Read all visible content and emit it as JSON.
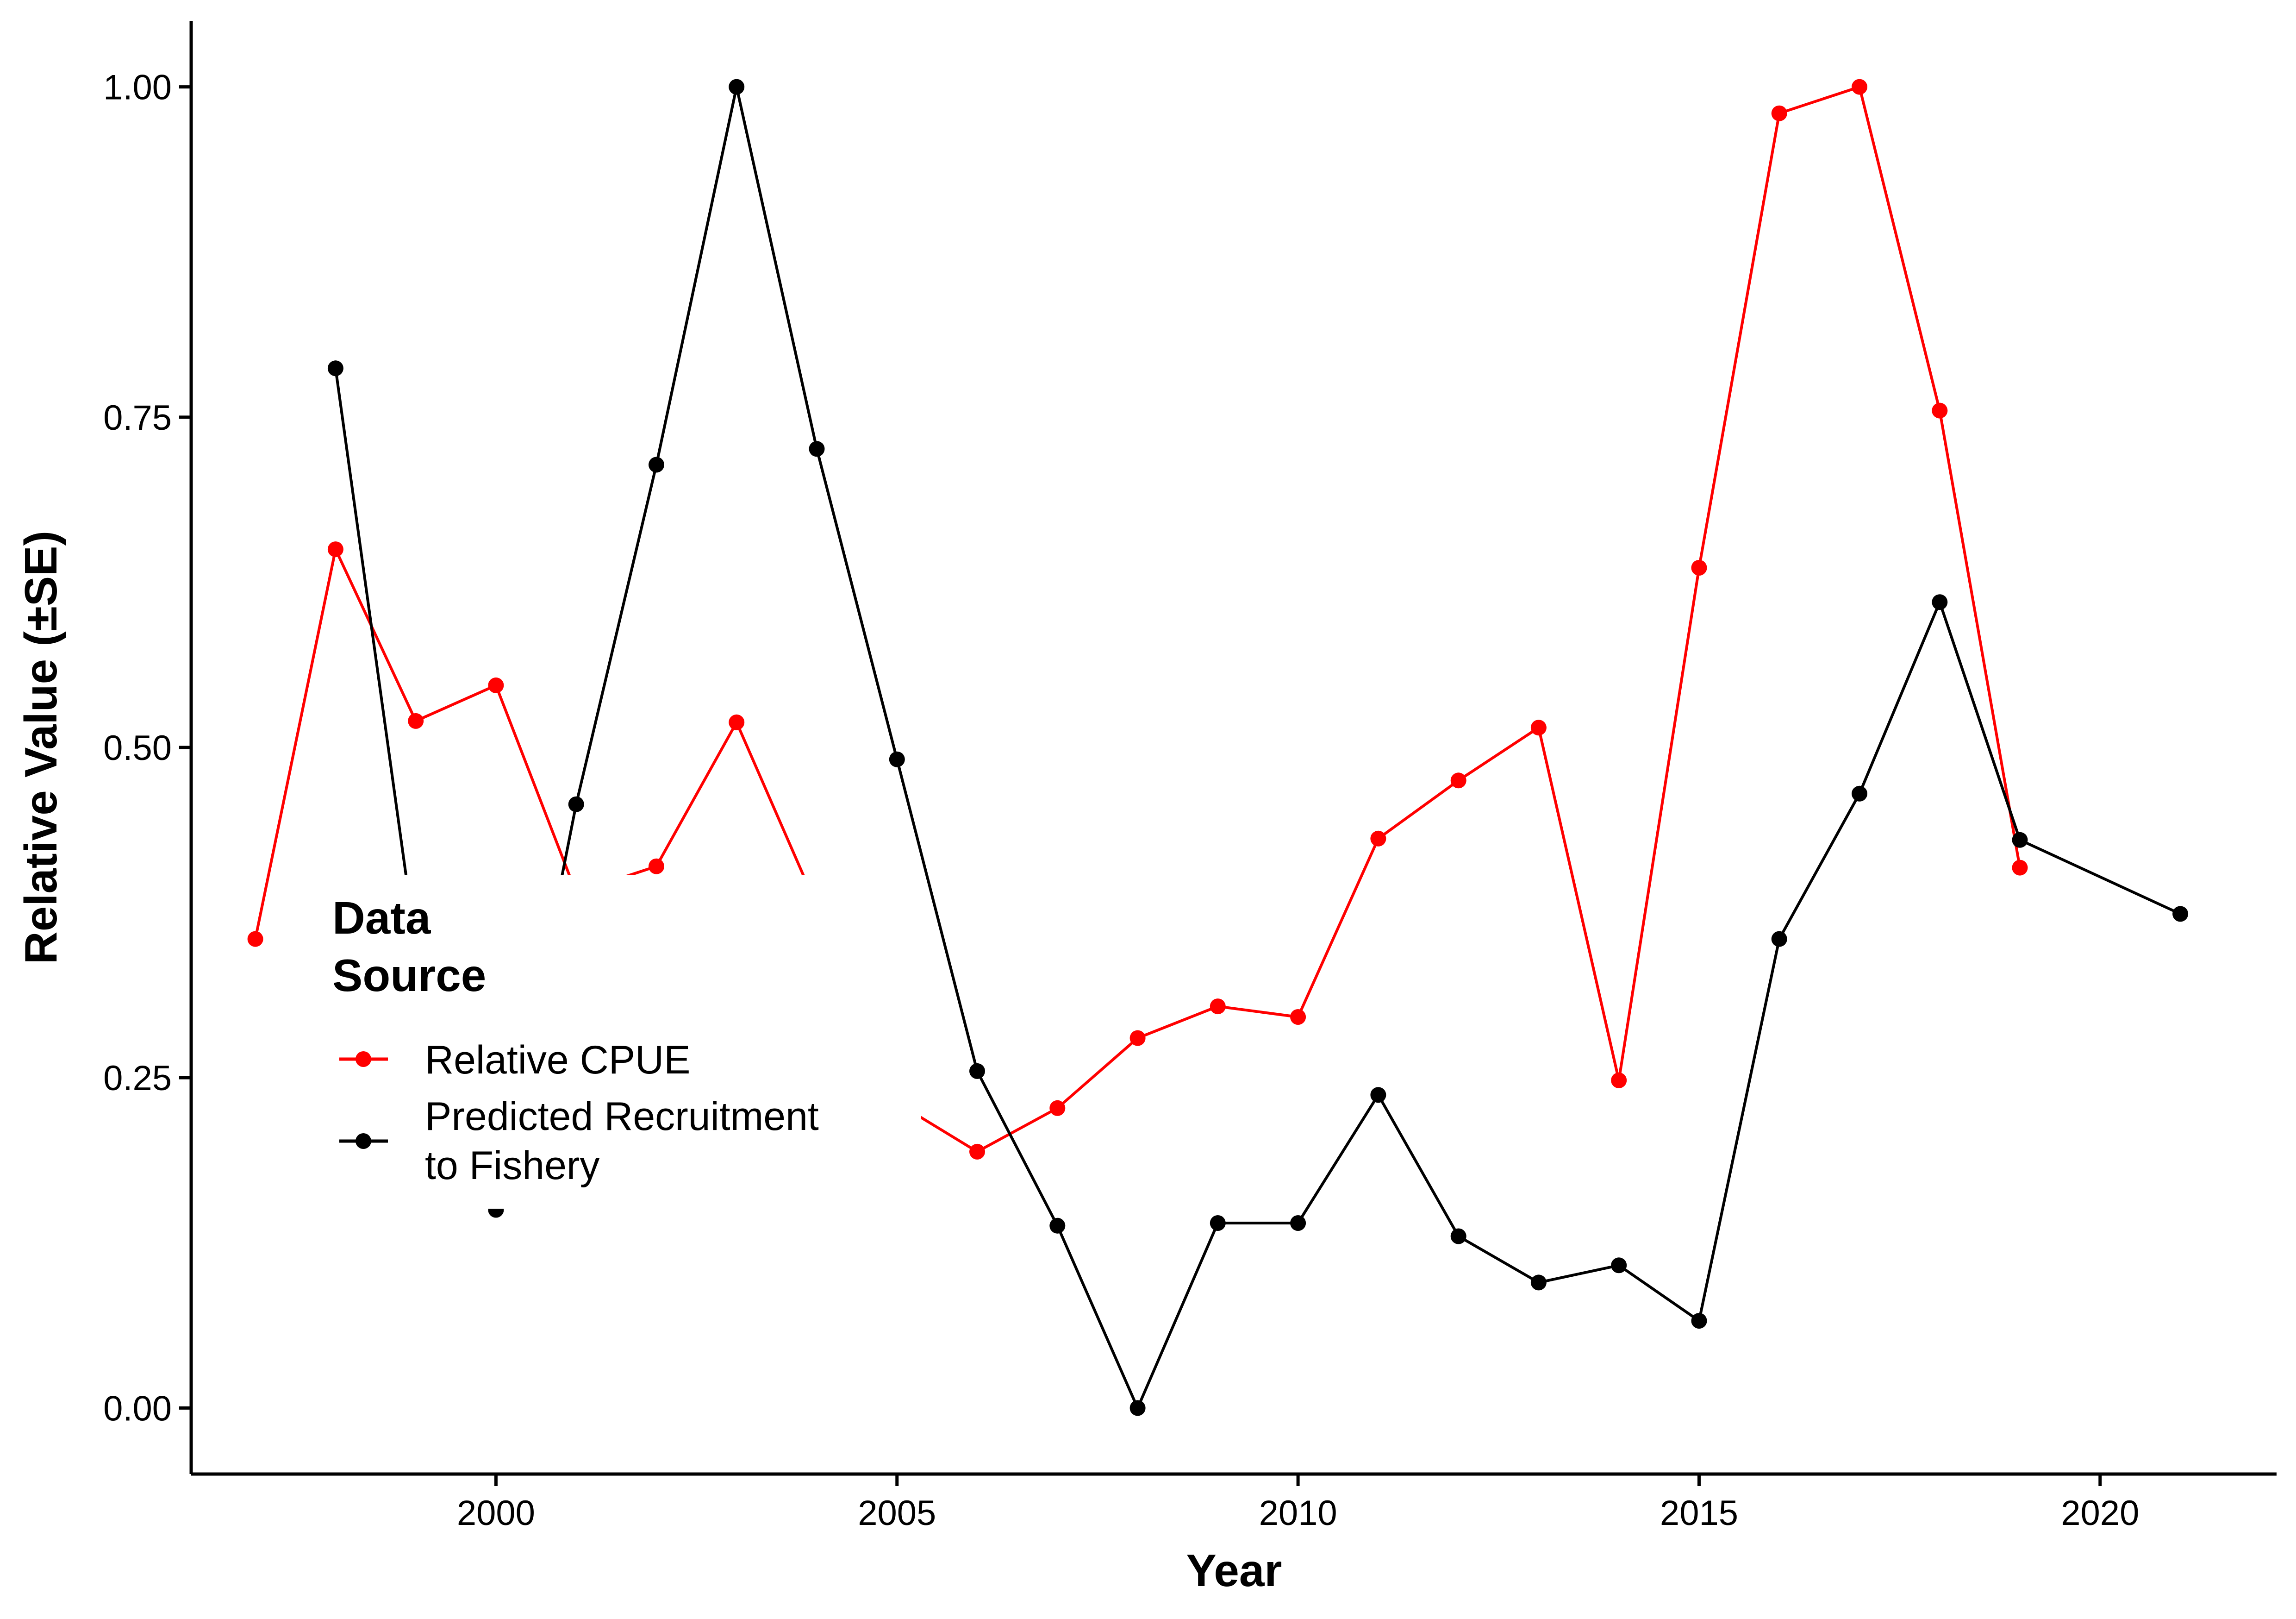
{
  "chart_data": {
    "type": "line",
    "xlabel": "Year",
    "ylabel": "Relative Value (±SE)",
    "xlim": [
      1996.2,
      2022.2
    ],
    "ylim": [
      -0.05,
      1.05
    ],
    "x_ticks": [
      2000,
      2005,
      2010,
      2015,
      2020
    ],
    "x_tick_labels": [
      "2000",
      "2005",
      "2010",
      "2015",
      "2020"
    ],
    "y_ticks": [
      0,
      0.25,
      0.5,
      0.75,
      1
    ],
    "y_tick_labels": [
      "0.00",
      "0.25",
      "0.50",
      "0.75",
      "1.00"
    ],
    "grid": false,
    "legend": {
      "title_line1": "Data",
      "title_line2": "Source",
      "position": "left",
      "entries": [
        {
          "line1": "Relative CPUE",
          "line2": ""
        },
        {
          "line1": "Predicted Recruitment",
          "line2": "to Fishery"
        }
      ]
    },
    "series": [
      {
        "name": "Relative CPUE",
        "color": "#ff0000",
        "x": [
          1997,
          1998,
          1999,
          2000,
          2001,
          2002,
          2003,
          2004,
          2005,
          2006,
          2007,
          2008,
          2009,
          2010,
          2011,
          2012,
          2013,
          2014,
          2015,
          2016,
          2017,
          2018,
          2019
        ],
        "y": [
          0.355,
          0.65,
          0.52,
          0.547,
          0.39,
          0.41,
          0.519,
          0.38,
          0.231,
          0.194,
          0.227,
          0.28,
          0.304,
          0.296,
          0.431,
          0.475,
          0.515,
          0.248,
          0.636,
          0.98,
          1.0,
          0.755,
          0.409
        ]
      },
      {
        "name": "Predicted Recruitment to Fishery",
        "color": "#000000",
        "x": [
          1998,
          1999,
          2000,
          2001,
          2002,
          2003,
          2004,
          2005,
          2006,
          2007,
          2008,
          2009,
          2010,
          2011,
          2012,
          2013,
          2014,
          2015,
          2016,
          2017,
          2018,
          2019,
          2021
        ],
        "y": [
          0.787,
          0.35,
          0.15,
          0.457,
          0.714,
          1.0,
          0.726,
          0.491,
          0.255,
          0.138,
          0.0,
          0.14,
          0.14,
          0.237,
          0.13,
          0.095,
          0.108,
          0.066,
          0.355,
          0.465,
          0.61,
          0.43,
          0.374
        ]
      }
    ]
  }
}
